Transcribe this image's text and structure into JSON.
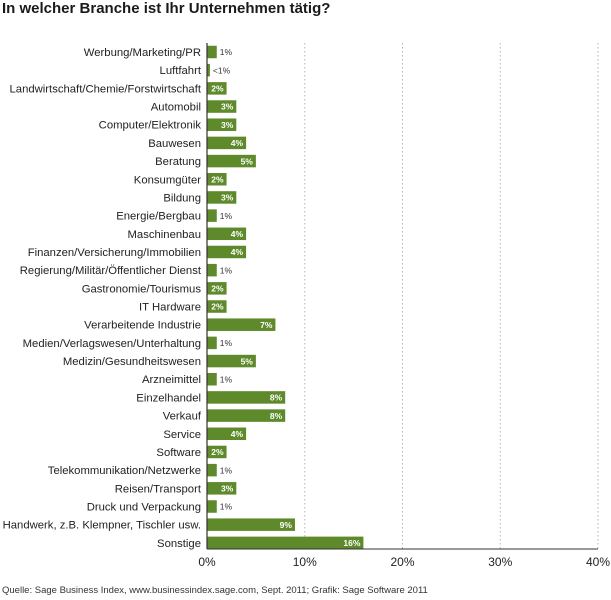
{
  "chart_data": {
    "type": "bar",
    "orientation": "horizontal",
    "title": "In welcher Branche ist Ihr Unternehmen tätig?",
    "categories": [
      "Werbung/Marketing/PR",
      "Luftfahrt",
      "Landwirtschaft/Chemie/Forstwirtschaft",
      "Automobil",
      "Computer/Elektronik",
      "Bauwesen",
      "Beratung",
      "Konsumgüter",
      "Bildung",
      "Energie/Bergbau",
      "Maschinenbau",
      "Finanzen/Versicherung/Immobilien",
      "Regierung/Militär/Öffentlicher Dienst",
      "Gastronomie/Tourismus",
      "IT Hardware",
      "Verarbeitende Industrie",
      "Medien/Verlagswesen/Unterhaltung",
      "Medizin/Gesundheitswesen",
      "Arzneimittel",
      "Einzelhandel",
      "Verkauf",
      "Service",
      "Software",
      "Telekommunikation/Netzwerke",
      "Reisen/Transport",
      "Druck und Verpackung",
      "Handwerk, z.B. Klempner, Tischler usw.",
      "Sonstige"
    ],
    "values": [
      1,
      0.3,
      2,
      3,
      3,
      4,
      5,
      2,
      3,
      1,
      4,
      4,
      1,
      2,
      2,
      7,
      1,
      5,
      1,
      8,
      8,
      4,
      2,
      1,
      3,
      1,
      9,
      16
    ],
    "value_labels": [
      "1%",
      "<1%",
      "2%",
      "3%",
      "3%",
      "4%",
      "5%",
      "2%",
      "3%",
      "1%",
      "4%",
      "4%",
      "1%",
      "2%",
      "2%",
      "7%",
      "1%",
      "5%",
      "1%",
      "8%",
      "8%",
      "4%",
      "2%",
      "1%",
      "3%",
      "1%",
      "9%",
      "16%"
    ],
    "xlim": [
      0,
      40
    ],
    "xticks": [
      0,
      10,
      20,
      30,
      40
    ],
    "xtick_labels": [
      "0%",
      "10%",
      "20%",
      "30%",
      "40%"
    ],
    "grid": "vertical-dotted",
    "bar_color": "#5e8a2c",
    "label_color": "#ffffff",
    "outside_label_color": "#333333"
  },
  "footer": {
    "source": "Quelle: Sage Business Index, www.businessindex.sage.com, Sept. 2011; Grafik: Sage Software 2011"
  }
}
